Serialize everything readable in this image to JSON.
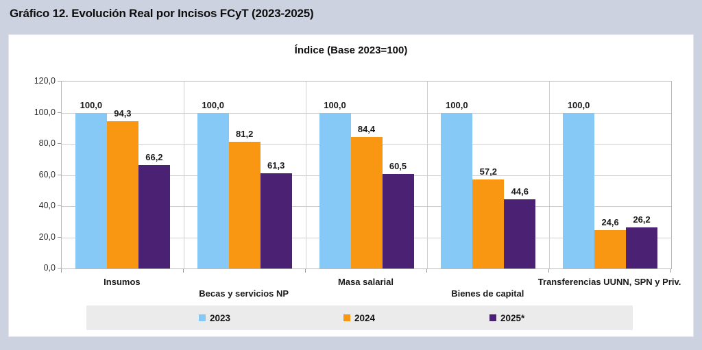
{
  "page": {
    "title": "Gráfico 12. Evolución Real por Incisos FCyT (2023-2025)"
  },
  "chart_data": {
    "type": "bar",
    "title": "Índice (Base 2023=100)",
    "categories": [
      "Insumos",
      "Becas y servicios NP",
      "Masa salarial",
      "Bienes de capital",
      "Transferencias UUNN, SPN y Priv."
    ],
    "series": [
      {
        "name": "2023",
        "color": "#86c9f7",
        "values": [
          100.0,
          100.0,
          100.0,
          100.0,
          100.0
        ]
      },
      {
        "name": "2024",
        "color": "#fa9712",
        "values": [
          94.3,
          81.2,
          84.4,
          57.2,
          24.6
        ]
      },
      {
        "name": "2025*",
        "color": "#4a2173",
        "values": [
          66.2,
          61.3,
          60.5,
          44.6,
          26.2
        ]
      }
    ],
    "value_label_format": "decimal-comma-1",
    "ylabel": "",
    "xlabel": "",
    "ylim": [
      0,
      120
    ],
    "ytick_step": 20,
    "ytick_labels": [
      "120,0",
      "100,0",
      "80,0",
      "60,0",
      "40,0",
      "20,0",
      "0,0"
    ],
    "grid": true,
    "legend_position": "bottom",
    "colors": {
      "page_background": "#cdd2e1",
      "panel_background": "#ffffff",
      "legend_background": "#ebebeb",
      "gridline": "#cfcfcf"
    }
  }
}
